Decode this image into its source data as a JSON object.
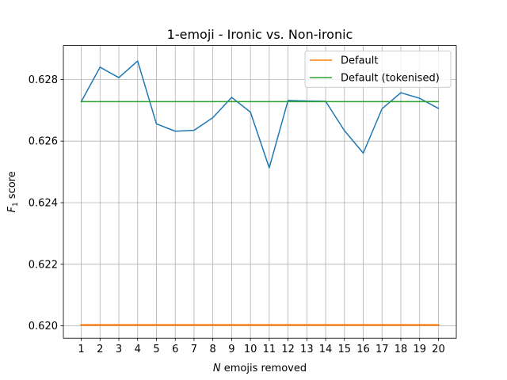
{
  "chart_data": {
    "type": "line",
    "title": "1-emoji - Ironic vs. Non-ironic",
    "xlabel_var": "N",
    "xlabel_rest": " emojis removed",
    "ylabel_var": "F",
    "ylabel_sub": "1",
    "ylabel_rest": " score",
    "x": [
      1,
      2,
      3,
      4,
      5,
      6,
      7,
      8,
      9,
      10,
      11,
      12,
      13,
      14,
      15,
      16,
      17,
      18,
      19,
      20
    ],
    "xlim": [
      0.05,
      20.95
    ],
    "ylim": [
      0.6196,
      0.6291
    ],
    "x_ticks": [
      1,
      2,
      3,
      4,
      5,
      6,
      7,
      8,
      9,
      10,
      11,
      12,
      13,
      14,
      15,
      16,
      17,
      18,
      19,
      20
    ],
    "y_ticks": [
      0.62,
      0.622,
      0.624,
      0.626,
      0.628
    ],
    "y_tick_labels": [
      "0.620",
      "0.622",
      "0.624",
      "0.626",
      "0.628"
    ],
    "grid": true,
    "legend_position": "top-right",
    "series": [
      {
        "values": [
          0.62728,
          0.6284,
          0.62806,
          0.6286,
          0.62656,
          0.62632,
          0.62635,
          0.62676,
          0.62742,
          0.62694,
          0.62513,
          0.62732,
          0.6273,
          0.62729,
          0.62634,
          0.62561,
          0.62705,
          0.62757,
          0.62739,
          0.62706
        ],
        "color": "#1f77b4",
        "in_legend": false
      },
      {
        "name": "Default",
        "values": [
          0.62003,
          0.62003,
          0.62003,
          0.62003,
          0.62003,
          0.62003,
          0.62003,
          0.62003,
          0.62003,
          0.62003,
          0.62003,
          0.62003,
          0.62003,
          0.62003,
          0.62003,
          0.62003,
          0.62003,
          0.62003,
          0.62003,
          0.62003
        ],
        "color": "#ff7f0e",
        "in_legend": true
      },
      {
        "name": "Default (tokenised)",
        "values": [
          0.62728,
          0.62728,
          0.62728,
          0.62728,
          0.62728,
          0.62728,
          0.62728,
          0.62728,
          0.62728,
          0.62728,
          0.62728,
          0.62728,
          0.62728,
          0.62728,
          0.62728,
          0.62728,
          0.62728,
          0.62728,
          0.62728,
          0.62728
        ],
        "color": "#2ca02c",
        "in_legend": true
      }
    ]
  }
}
